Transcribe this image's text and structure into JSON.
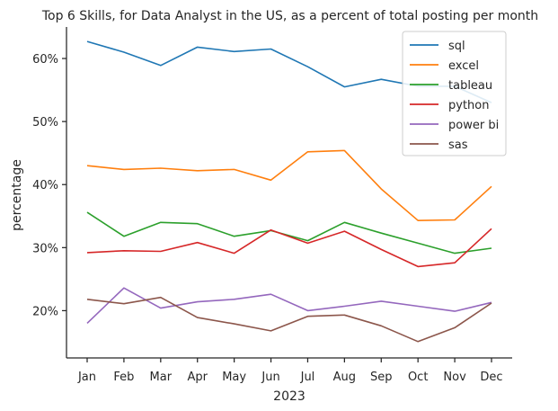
{
  "chart_data": {
    "type": "line",
    "title": "Top 6 Skills, for Data Analyst in the US, as a percent of total posting per month",
    "xlabel": "2023",
    "ylabel": "percentage",
    "categories": [
      "Jan",
      "Feb",
      "Mar",
      "Apr",
      "May",
      "Jun",
      "Jul",
      "Aug",
      "Sep",
      "Oct",
      "Nov",
      "Dec"
    ],
    "yticks": [
      "20%",
      "30%",
      "40%",
      "50%",
      "60%"
    ],
    "ytick_values": [
      20,
      30,
      40,
      50,
      60
    ],
    "ylim": [
      12.5,
      65
    ],
    "grid": false,
    "legend_position": "top-right",
    "series": [
      {
        "name": "sql",
        "color": "#1f77b4",
        "values": [
          62.7,
          61.0,
          58.9,
          61.8,
          61.1,
          61.5,
          58.7,
          55.5,
          56.7,
          55.6,
          55.6,
          53.0
        ]
      },
      {
        "name": "excel",
        "color": "#ff7f0e",
        "values": [
          43.0,
          42.4,
          42.6,
          42.2,
          42.4,
          40.7,
          45.2,
          45.4,
          39.3,
          34.3,
          34.4,
          39.7
        ]
      },
      {
        "name": "tableau",
        "color": "#2ca02c",
        "values": [
          35.6,
          31.8,
          34.0,
          33.8,
          31.8,
          32.7,
          31.1,
          34.0,
          32.3,
          30.7,
          29.1,
          29.9
        ]
      },
      {
        "name": "python",
        "color": "#d62728",
        "values": [
          29.2,
          29.5,
          29.4,
          30.8,
          29.1,
          32.8,
          30.7,
          32.6,
          29.7,
          27.0,
          27.6,
          33.0
        ]
      },
      {
        "name": "power bi",
        "color": "#9467bd",
        "values": [
          18.0,
          23.6,
          20.4,
          21.4,
          21.8,
          22.6,
          20.0,
          20.7,
          21.5,
          20.7,
          19.9,
          21.3
        ]
      },
      {
        "name": "sas",
        "color": "#8c564b",
        "values": [
          21.8,
          21.1,
          22.1,
          18.9,
          17.9,
          16.8,
          19.1,
          19.3,
          17.6,
          15.1,
          17.3,
          21.2
        ]
      }
    ]
  }
}
